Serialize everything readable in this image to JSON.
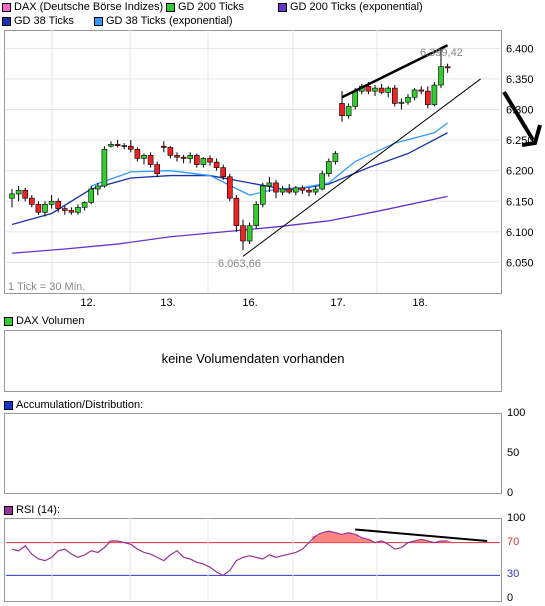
{
  "legend": {
    "items": [
      {
        "label": "DAX (Deutsche Börse Indizes)",
        "color": "#ff66cc"
      },
      {
        "label": "GD 200 Ticks",
        "color": "#33cc33"
      },
      {
        "label": "GD 200 Ticks (exponential)",
        "color": "#6633cc"
      },
      {
        "label": "GD 38 Ticks",
        "color": "#1a33aa"
      },
      {
        "label": "GD 38 Ticks (exponential)",
        "color": "#3399ff"
      }
    ]
  },
  "price_panel": {
    "tick_note": "1 Tick = 30 Min.",
    "high_label": "6.399,42",
    "low_label": "6.063,66"
  },
  "volume_panel": {
    "title": "DAX Volumen",
    "swatch_color": "#33cc33",
    "message": "keine Volumendaten vorhanden"
  },
  "ad_panel": {
    "title": "Accumulation/Distribution:",
    "swatch_color": "#1a33cc",
    "ticks": [
      "100",
      "50",
      "0"
    ]
  },
  "rsi_panel": {
    "title": "RSI (14):",
    "swatch_color": "#993399",
    "ticks": [
      "100",
      "70",
      "30",
      "0"
    ]
  },
  "chart_data": {
    "type": "candlestick",
    "x_tick_labels": [
      "12.",
      "13.",
      "16.",
      "17.",
      "18."
    ],
    "y_tick_labels": [
      "6.400",
      "6.350",
      "6.300",
      "6.250",
      "6.200",
      "6.150",
      "6.100",
      "6.050"
    ],
    "ylim": [
      6000,
      6430
    ],
    "candles": [
      [
        6155,
        6170,
        6140,
        6162
      ],
      [
        6162,
        6175,
        6150,
        6168
      ],
      [
        6168,
        6172,
        6150,
        6155
      ],
      [
        6155,
        6160,
        6140,
        6145
      ],
      [
        6145,
        6150,
        6128,
        6132
      ],
      [
        6132,
        6150,
        6125,
        6145
      ],
      [
        6145,
        6160,
        6138,
        6150
      ],
      [
        6150,
        6155,
        6132,
        6138
      ],
      [
        6138,
        6142,
        6128,
        6135
      ],
      [
        6135,
        6140,
        6128,
        6132
      ],
      [
        6132,
        6145,
        6128,
        6140
      ],
      [
        6140,
        6150,
        6135,
        6148
      ],
      [
        6148,
        6175,
        6145,
        6170
      ],
      [
        6170,
        6180,
        6160,
        6175
      ],
      [
        6175,
        6240,
        6172,
        6235
      ],
      [
        6240,
        6248,
        6238,
        6243
      ],
      [
        6243,
        6250,
        6238,
        6241
      ],
      [
        6241,
        6245,
        6235,
        6240
      ],
      [
        6240,
        6250,
        6230,
        6235
      ],
      [
        6235,
        6238,
        6215,
        6220
      ],
      [
        6220,
        6228,
        6210,
        6225
      ],
      [
        6225,
        6230,
        6205,
        6210
      ],
      [
        6210,
        6215,
        6190,
        6195
      ],
      [
        6240,
        6248,
        6230,
        6238
      ],
      [
        6238,
        6240,
        6220,
        6225
      ],
      [
        6225,
        6230,
        6215,
        6222
      ],
      [
        6222,
        6226,
        6212,
        6220
      ],
      [
        6220,
        6230,
        6212,
        6225
      ],
      [
        6225,
        6228,
        6205,
        6210
      ],
      [
        6210,
        6222,
        6205,
        6220
      ],
      [
        6220,
        6225,
        6208,
        6214
      ],
      [
        6214,
        6220,
        6200,
        6205
      ],
      [
        6205,
        6210,
        6185,
        6190
      ],
      [
        6190,
        6195,
        6150,
        6155
      ],
      [
        6155,
        6160,
        6100,
        6110
      ],
      [
        6110,
        6120,
        6070,
        6085
      ],
      [
        6085,
        6115,
        6080,
        6110
      ],
      [
        6110,
        6150,
        6105,
        6145
      ],
      [
        6145,
        6180,
        6140,
        6175
      ],
      [
        6175,
        6190,
        6165,
        6180
      ],
      [
        6180,
        6185,
        6155,
        6165
      ],
      [
        6165,
        6175,
        6160,
        6170
      ],
      [
        6170,
        6178,
        6162,
        6165
      ],
      [
        6165,
        6175,
        6160,
        6172
      ],
      [
        6172,
        6176,
        6162,
        6168
      ],
      [
        6168,
        6172,
        6158,
        6165
      ],
      [
        6165,
        6175,
        6160,
        6170
      ],
      [
        6170,
        6200,
        6168,
        6195
      ],
      [
        6195,
        6220,
        6190,
        6215
      ],
      [
        6215,
        6232,
        6210,
        6228
      ],
      [
        6310,
        6330,
        6280,
        6290
      ],
      [
        6290,
        6310,
        6285,
        6305
      ],
      [
        6305,
        6335,
        6300,
        6330
      ],
      [
        6330,
        6342,
        6325,
        6338
      ],
      [
        6338,
        6345,
        6325,
        6330
      ],
      [
        6330,
        6340,
        6322,
        6335
      ],
      [
        6335,
        6342,
        6325,
        6328
      ],
      [
        6328,
        6338,
        6320,
        6335
      ],
      [
        6335,
        6340,
        6305,
        6310
      ],
      [
        6310,
        6318,
        6300,
        6312
      ],
      [
        6312,
        6325,
        6308,
        6320
      ],
      [
        6320,
        6335,
        6315,
        6332
      ],
      [
        6332,
        6338,
        6325,
        6330
      ],
      [
        6330,
        6338,
        6302,
        6308
      ],
      [
        6308,
        6345,
        6305,
        6340
      ],
      [
        6340,
        6399,
        6335,
        6370
      ],
      [
        6370,
        6375,
        6360,
        6368
      ]
    ],
    "series": [
      {
        "name": "GD 38 Ticks",
        "color": "#1a33aa",
        "x": [
          0,
          6,
          12,
          18,
          24,
          30,
          36,
          42,
          48,
          54,
          60,
          66
        ],
        "y": [
          6112,
          6130,
          6170,
          6188,
          6192,
          6192,
          6180,
          6168,
          6178,
          6205,
          6228,
          6262
        ]
      },
      {
        "name": "GD 38 Ticks (exponential)",
        "color": "#3399ff",
        "x": [
          12,
          18,
          24,
          30,
          36,
          40,
          44,
          48,
          52,
          58,
          64,
          66
        ],
        "y": [
          6175,
          6198,
          6200,
          6192,
          6160,
          6170,
          6172,
          6180,
          6215,
          6245,
          6262,
          6278
        ]
      },
      {
        "name": "GD 200 Ticks (exponential)",
        "color": "#6633cc",
        "x": [
          0,
          8,
          16,
          24,
          32,
          40,
          48,
          56,
          66
        ],
        "y": [
          6065,
          6072,
          6080,
          6092,
          6100,
          6108,
          6118,
          6135,
          6158
        ]
      }
    ],
    "trendlines": [
      {
        "x": [
          50,
          66
        ],
        "y": [
          6320,
          6405
        ],
        "color": "#000000",
        "width": 2.5
      },
      {
        "x": [
          35,
          71
        ],
        "y": [
          6060,
          6350
        ],
        "color": "#000000",
        "width": 1
      }
    ],
    "rsi": {
      "ylim": [
        0,
        100
      ],
      "levels": [
        70,
        30
      ],
      "values": [
        62,
        60,
        66,
        56,
        50,
        48,
        52,
        60,
        62,
        56,
        52,
        55,
        60,
        58,
        64,
        72,
        72,
        70,
        68,
        62,
        58,
        56,
        52,
        48,
        55,
        60,
        52,
        50,
        46,
        44,
        40,
        34,
        30,
        36,
        48,
        52,
        54,
        52,
        50,
        55,
        52,
        54,
        56,
        58,
        62,
        70,
        78,
        82,
        84,
        82,
        80,
        82,
        80,
        76,
        74,
        70,
        72,
        68,
        62,
        64,
        70,
        72,
        74,
        72,
        70,
        72,
        72
      ],
      "shade_above": 70,
      "trendline": {
        "x": [
          52,
          72
        ],
        "y": [
          86,
          72
        ]
      }
    }
  }
}
